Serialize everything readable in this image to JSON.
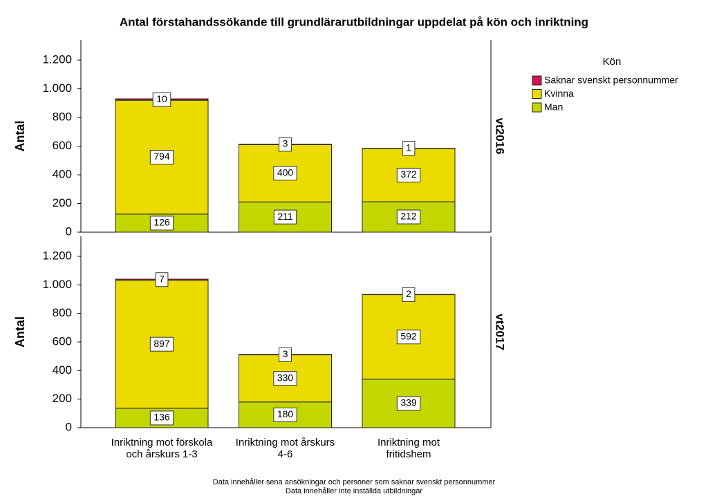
{
  "title": "Antal förstahandssökande till grundlärarutbildningar uppdelat på kön och inriktning",
  "legend_title": "Kön",
  "notes": [
    "Data innehåller sena ansökningar och personer som saknar svenskt personnummer",
    "Data innehåller inte inställda utbildningar"
  ],
  "chart_data": [
    {
      "type": "bar",
      "stacked": true,
      "panel": "vt2016",
      "ylabel": "Antal",
      "categories": [
        "Inriktning mot förskola\noch årskurs 1-3",
        "Inriktning mot årskurs\n4-6",
        "Inriktning mot\nfritidshem"
      ],
      "series": [
        {
          "name": "Man",
          "color": "#c4d600",
          "values": [
            126,
            211,
            212
          ]
        },
        {
          "name": "Kvinna",
          "color": "#ecdb00",
          "values": [
            794,
            400,
            372
          ]
        },
        {
          "name": "Saknar svenskt personnummer",
          "color": "#d6134f",
          "values": [
            10,
            3,
            1
          ]
        }
      ],
      "ylim": [
        0,
        1340
      ],
      "yticks": [
        0,
        200,
        400,
        600,
        800,
        {
          "value": 1000,
          "label": "1.000"
        },
        {
          "value": 1200,
          "label": "1.200"
        }
      ]
    },
    {
      "type": "bar",
      "stacked": true,
      "panel": "vt2017",
      "ylabel": "Antal",
      "categories": [
        "Inriktning mot förskola\noch årskurs 1-3",
        "Inriktning mot årskurs\n4-6",
        "Inriktning mot\nfritidshem"
      ],
      "series": [
        {
          "name": "Man",
          "color": "#c4d600",
          "values": [
            136,
            180,
            339
          ]
        },
        {
          "name": "Kvinna",
          "color": "#ecdb00",
          "values": [
            897,
            330,
            592
          ]
        },
        {
          "name": "Saknar svenskt personnummer",
          "color": "#d6134f",
          "values": [
            7,
            3,
            2
          ]
        }
      ],
      "ylim": [
        0,
        1340
      ],
      "yticks": [
        0,
        200,
        400,
        600,
        800,
        {
          "value": 1000,
          "label": "1.000"
        },
        {
          "value": 1200,
          "label": "1.200"
        }
      ]
    }
  ]
}
